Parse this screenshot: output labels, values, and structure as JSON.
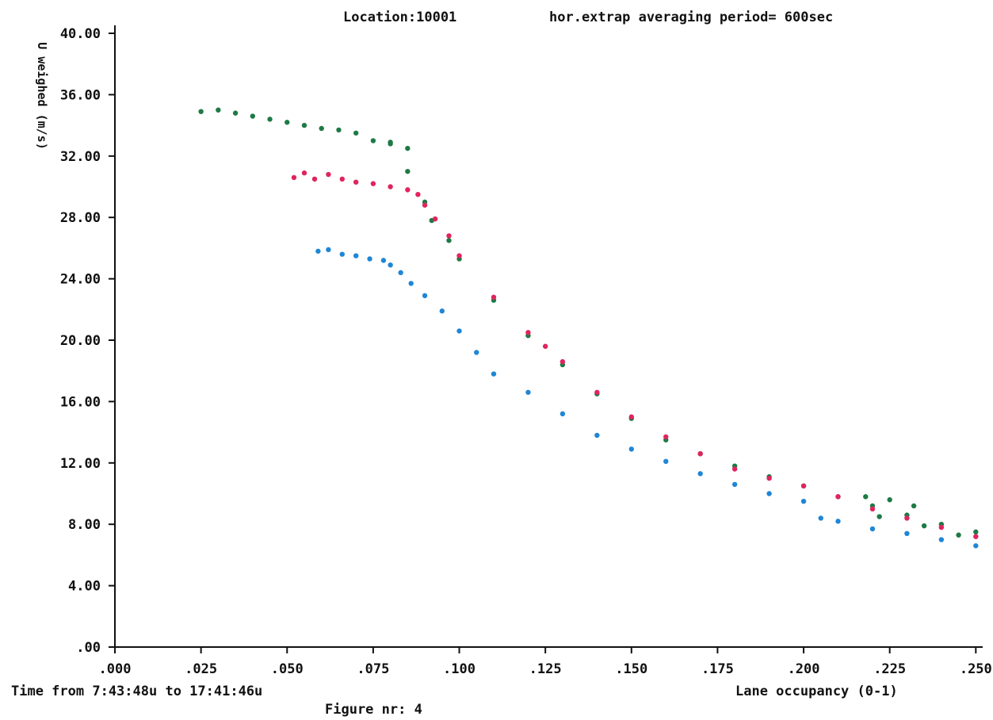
{
  "header": {
    "location": "Location:10001",
    "period": "hor.extrap averaging period= 600sec"
  },
  "footer": {
    "time_range": "Time from 7:43:48u to 17:41:46u",
    "figure": "Figure nr: 4"
  },
  "chart_data": {
    "type": "scatter",
    "title": "",
    "xlabel": "Lane occupancy (0-1)",
    "ylabel": "U weighed (m/s)",
    "xlim": [
      0,
      0.252
    ],
    "ylim": [
      0,
      40
    ],
    "xticks": [
      0,
      0.025,
      0.05,
      0.075,
      0.1,
      0.125,
      0.15,
      0.175,
      0.2,
      0.225,
      0.25
    ],
    "xtick_labels": [
      ".000",
      ".025",
      ".050",
      ".075",
      ".100",
      ".125",
      ".150",
      ".175",
      ".200",
      ".225",
      ".250"
    ],
    "yticks": [
      0,
      4,
      8,
      12,
      16,
      20,
      24,
      28,
      32,
      36,
      40
    ],
    "ytick_labels": [
      ".00",
      "4.00",
      "8.00",
      "12.00",
      "16.00",
      "20.00",
      "24.00",
      "28.00",
      "32.00",
      "36.00",
      "40.00"
    ],
    "grid": false,
    "legend": "none",
    "series": [
      {
        "color": "#1e7a45",
        "points": [
          [
            0.025,
            34.9
          ],
          [
            0.03,
            35.0
          ],
          [
            0.035,
            34.8
          ],
          [
            0.04,
            34.6
          ],
          [
            0.045,
            34.4
          ],
          [
            0.05,
            34.2
          ],
          [
            0.055,
            34.0
          ],
          [
            0.06,
            33.8
          ],
          [
            0.065,
            33.7
          ],
          [
            0.07,
            33.5
          ],
          [
            0.075,
            33.0
          ],
          [
            0.08,
            32.8
          ],
          [
            0.085,
            32.5
          ],
          [
            0.08,
            32.9
          ],
          [
            0.085,
            31.0
          ],
          [
            0.09,
            29.0
          ],
          [
            0.092,
            27.8
          ],
          [
            0.097,
            26.5
          ],
          [
            0.1,
            25.3
          ],
          [
            0.11,
            22.6
          ],
          [
            0.12,
            20.3
          ],
          [
            0.13,
            18.4
          ],
          [
            0.14,
            16.5
          ],
          [
            0.15,
            14.9
          ],
          [
            0.16,
            13.5
          ],
          [
            0.17,
            12.6
          ],
          [
            0.18,
            11.8
          ],
          [
            0.19,
            11.1
          ],
          [
            0.2,
            10.5
          ],
          [
            0.21,
            9.8
          ],
          [
            0.22,
            9.2
          ],
          [
            0.23,
            8.6
          ],
          [
            0.24,
            8.0
          ],
          [
            0.25,
            7.5
          ],
          [
            0.218,
            9.8
          ],
          [
            0.225,
            9.6
          ],
          [
            0.232,
            9.2
          ],
          [
            0.222,
            8.5
          ],
          [
            0.235,
            7.9
          ],
          [
            0.245,
            7.3
          ]
        ]
      },
      {
        "color": "#e0245e",
        "points": [
          [
            0.052,
            30.6
          ],
          [
            0.055,
            30.9
          ],
          [
            0.058,
            30.5
          ],
          [
            0.062,
            30.8
          ],
          [
            0.066,
            30.5
          ],
          [
            0.07,
            30.3
          ],
          [
            0.075,
            30.2
          ],
          [
            0.08,
            30.0
          ],
          [
            0.085,
            29.8
          ],
          [
            0.088,
            29.5
          ],
          [
            0.09,
            28.8
          ],
          [
            0.093,
            27.9
          ],
          [
            0.097,
            26.8
          ],
          [
            0.1,
            25.5
          ],
          [
            0.11,
            22.8
          ],
          [
            0.12,
            20.5
          ],
          [
            0.125,
            19.6
          ],
          [
            0.13,
            18.6
          ],
          [
            0.14,
            16.6
          ],
          [
            0.15,
            15.0
          ],
          [
            0.16,
            13.7
          ],
          [
            0.17,
            12.6
          ],
          [
            0.18,
            11.6
          ],
          [
            0.19,
            11.0
          ],
          [
            0.2,
            10.5
          ],
          [
            0.21,
            9.8
          ],
          [
            0.22,
            9.0
          ],
          [
            0.23,
            8.4
          ],
          [
            0.24,
            7.8
          ],
          [
            0.25,
            7.2
          ]
        ]
      },
      {
        "color": "#1f86d6",
        "points": [
          [
            0.059,
            25.8
          ],
          [
            0.062,
            25.9
          ],
          [
            0.066,
            25.6
          ],
          [
            0.07,
            25.5
          ],
          [
            0.074,
            25.3
          ],
          [
            0.078,
            25.2
          ],
          [
            0.08,
            24.9
          ],
          [
            0.083,
            24.4
          ],
          [
            0.086,
            23.7
          ],
          [
            0.09,
            22.9
          ],
          [
            0.095,
            21.9
          ],
          [
            0.1,
            20.6
          ],
          [
            0.105,
            19.2
          ],
          [
            0.11,
            17.8
          ],
          [
            0.12,
            16.6
          ],
          [
            0.13,
            15.2
          ],
          [
            0.14,
            13.8
          ],
          [
            0.15,
            12.9
          ],
          [
            0.16,
            12.1
          ],
          [
            0.17,
            11.3
          ],
          [
            0.18,
            10.6
          ],
          [
            0.19,
            10.0
          ],
          [
            0.2,
            9.5
          ],
          [
            0.205,
            8.4
          ],
          [
            0.21,
            8.2
          ],
          [
            0.22,
            7.7
          ],
          [
            0.23,
            7.4
          ],
          [
            0.24,
            7.0
          ],
          [
            0.25,
            6.6
          ]
        ]
      }
    ]
  }
}
